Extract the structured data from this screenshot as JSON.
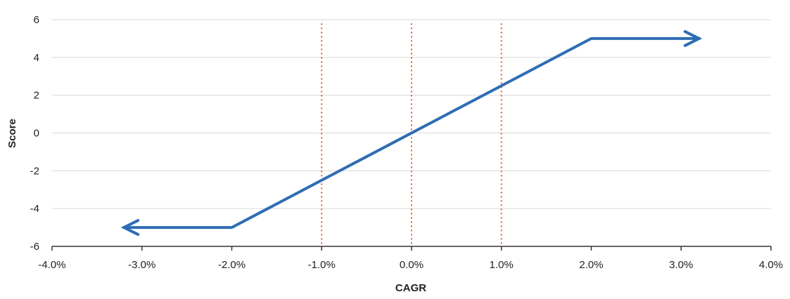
{
  "chart_data": {
    "type": "line",
    "title": "",
    "xlabel": "CAGR",
    "ylabel": "Score",
    "xlim": [
      -4.0,
      4.0
    ],
    "ylim": [
      -6,
      6
    ],
    "x_ticks": [
      -4.0,
      -3.0,
      -2.0,
      -1.0,
      0.0,
      1.0,
      2.0,
      3.0,
      4.0
    ],
    "x_tick_labels": [
      "-4.0%",
      "-3.0%",
      "-2.0%",
      "-1.0%",
      "0.0%",
      "1.0%",
      "2.0%",
      "3.0%",
      "4.0%"
    ],
    "y_ticks": [
      -6,
      -4,
      -2,
      0,
      2,
      4,
      6
    ],
    "y_tick_labels": [
      "-6",
      "-4",
      "-2",
      "0",
      "2",
      "4",
      "6"
    ],
    "grid": "horizontal",
    "series": [
      {
        "color": "#2e6db4",
        "x": [
          -3.2,
          -2.0,
          2.0,
          3.2
        ],
        "y": [
          -5,
          -5,
          5,
          5
        ],
        "arrow_ends": [
          "start",
          "end"
        ]
      }
    ],
    "reference_lines": [
      {
        "x": -1.0,
        "color": "#e8572a",
        "style": "dotted"
      },
      {
        "x": 0.0,
        "color": "#e8572a",
        "style": "dotted"
      },
      {
        "x": 1.0,
        "color": "#e8572a",
        "style": "dotted"
      }
    ],
    "colors": {
      "grid": "#d9d9d9",
      "axis": "#333333"
    }
  }
}
